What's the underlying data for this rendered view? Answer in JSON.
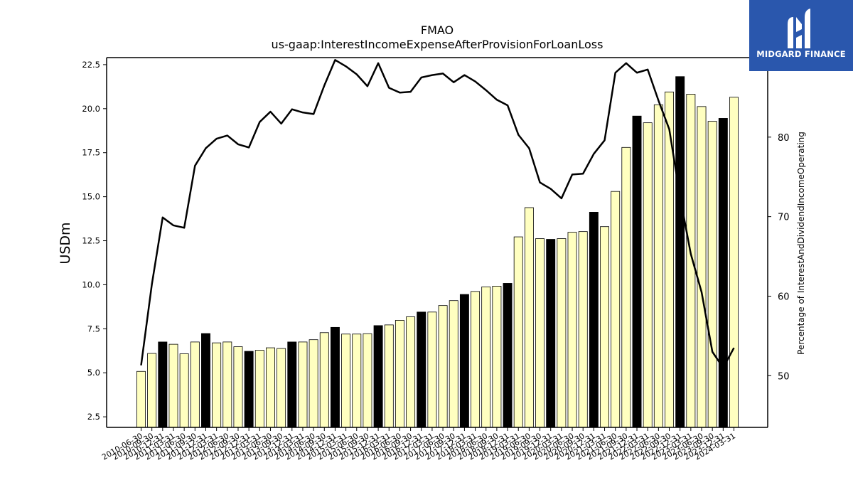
{
  "chart_data": {
    "type": "bar",
    "title": "FMAO",
    "subtitle": "us-gaap:InterestIncomeExpenseAfterProvisionForLoanLoss",
    "ylabel": "USDm",
    "y2label": "Percentage of InterestAndDividendIncomeOperating",
    "ylim": [
      1.9,
      22.9
    ],
    "y2lim": [
      43.5,
      90.0
    ],
    "yticks": [
      2.5,
      5.0,
      7.5,
      10.0,
      12.5,
      15.0,
      17.5,
      20.0,
      22.5
    ],
    "y2ticks": [
      50,
      60,
      70,
      80
    ],
    "grid": false,
    "categories": [
      "2010-06-30",
      "2010-09-30",
      "2010-12-31",
      "2011-03-31",
      "2011-06-30",
      "2011-09-30",
      "2011-12-31",
      "2012-03-31",
      "2012-06-30",
      "2012-09-30",
      "2012-12-31",
      "2013-03-31",
      "2013-06-30",
      "2013-09-30",
      "2013-12-31",
      "2014-03-31",
      "2014-06-30",
      "2014-09-30",
      "2014-12-31",
      "2015-03-31",
      "2015-06-30",
      "2015-09-30",
      "2015-12-31",
      "2016-03-31",
      "2016-06-30",
      "2016-09-30",
      "2016-12-31",
      "2017-03-31",
      "2017-06-30",
      "2017-09-30",
      "2017-12-31",
      "2018-03-31",
      "2018-06-30",
      "2018-09-30",
      "2018-12-31",
      "2019-03-31",
      "2019-06-30",
      "2019-09-30",
      "2019-12-31",
      "2020-03-31",
      "2020-06-30",
      "2020-09-30",
      "2020-12-31",
      "2021-03-31",
      "2021-06-30",
      "2021-09-30",
      "2021-12-31",
      "2022-03-31",
      "2022-06-30",
      "2022-09-30",
      "2022-12-31",
      "2023-03-31",
      "2023-06-30",
      "2023-09-30",
      "2023-12-31",
      "2024-03-31"
    ],
    "tick_labels": [
      "2010-06-30",
      "2010-09-30",
      "2010-12-31",
      "2011-03-31",
      "2011-06-30",
      "2011-09-30",
      "2011-12-31",
      "2012-03-31",
      "2012-06-30",
      "2012-09-30",
      "2012-12-31",
      "2013-03-31",
      "2013-06-30",
      "2013-09-30",
      "2013-12-31",
      "2014-03-31",
      "2014-06-30",
      "2014-09-30",
      "2014-12-31",
      "2015-03-31",
      "2015-06-30",
      "2015-09-30",
      "2015-12-31",
      "2016-03-31",
      "2016-06-30",
      "2016-09-30",
      "2016-12-31",
      "2017-03-31",
      "2017-06-30",
      "2017-09-30",
      "2017-12-31",
      "2018-03-31",
      "2018-06-30",
      "2018-09-30",
      "2018-12-31",
      "2019-03-31",
      "2019-06-30",
      "2019-09-30",
      "2019-12-31",
      "2020-03-31",
      "2020-06-30",
      "2020-09-30",
      "2020-12-31",
      "2021-03-31",
      "2021-06-30",
      "2021-09-30",
      "2021-12-31",
      "2022-03-31",
      "2022-06-30",
      "2022-09-30",
      "2022-12-31",
      "2023-03-31",
      "2023-06-30",
      "2023-09-30",
      "2023-12-31",
      "2024-03-31"
    ],
    "series": [
      {
        "type": "bar",
        "axis": "left",
        "values": [
          5.08,
          6.1,
          6.75,
          6.62,
          6.08,
          6.75,
          7.23,
          6.7,
          6.75,
          6.48,
          6.22,
          6.28,
          6.42,
          6.38,
          6.75,
          6.75,
          6.88,
          7.28,
          7.58,
          7.2,
          7.2,
          7.22,
          7.68,
          7.72,
          7.98,
          8.18,
          8.45,
          8.45,
          8.82,
          9.1,
          9.45,
          9.62,
          9.88,
          9.92,
          10.08,
          12.72,
          14.38,
          12.62,
          12.58,
          12.62,
          12.98,
          13.02,
          14.12,
          13.3,
          15.3,
          17.8,
          19.58,
          19.2,
          20.22,
          20.95,
          21.82,
          20.82,
          20.12,
          19.28,
          19.45,
          20.65
        ],
        "highlight": [
          false,
          false,
          true,
          false,
          false,
          false,
          true,
          false,
          false,
          false,
          true,
          false,
          false,
          false,
          true,
          false,
          false,
          false,
          true,
          false,
          false,
          false,
          true,
          false,
          false,
          false,
          true,
          false,
          false,
          false,
          true,
          false,
          false,
          false,
          true,
          false,
          false,
          false,
          true,
          false,
          false,
          false,
          true,
          false,
          false,
          false,
          true,
          false,
          false,
          false,
          true,
          false,
          false,
          false,
          true,
          false
        ],
        "color": "#ffffc0",
        "highlight_color": "#000000"
      },
      {
        "type": "line",
        "axis": "right",
        "values": [
          51.3,
          61.5,
          69.9,
          68.9,
          68.6,
          76.4,
          78.6,
          79.8,
          80.2,
          79.1,
          78.7,
          81.9,
          83.2,
          81.7,
          83.5,
          83.1,
          82.9,
          86.5,
          89.7,
          88.9,
          87.9,
          86.4,
          89.3,
          86.2,
          85.6,
          85.7,
          87.5,
          87.8,
          88.0,
          86.9,
          87.8,
          87.0,
          85.9,
          84.7,
          84.0,
          80.3,
          78.6,
          74.3,
          73.5,
          72.3,
          75.3,
          75.4,
          77.9,
          79.6,
          88.1,
          89.3,
          88.1,
          88.5,
          84.6,
          81.0,
          72.5,
          65.3,
          60.5,
          53.0,
          51.0,
          53.5
        ],
        "color": "#000000"
      }
    ]
  },
  "logo": {
    "text": "MIDGARD FINANCE"
  }
}
